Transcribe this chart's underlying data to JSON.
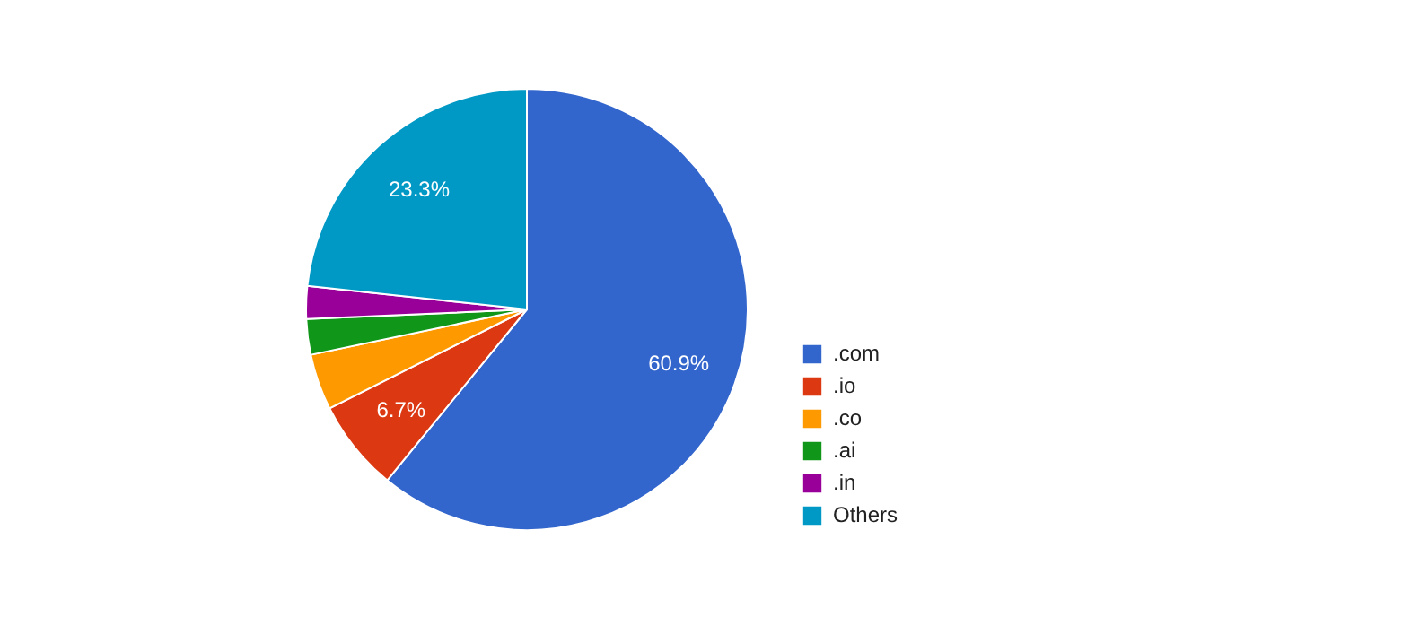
{
  "chart_data": {
    "type": "pie",
    "categories": [
      ".com",
      ".io",
      ".co",
      ".ai",
      ".in",
      "Others"
    ],
    "values": [
      60.9,
      6.7,
      4.1,
      2.6,
      2.4,
      23.3
    ],
    "colors": [
      "#3366cc",
      "#dc3912",
      "#ff9900",
      "#109618",
      "#990099",
      "#0099c6"
    ],
    "value_labels": [
      "60.9%",
      "6.7%",
      null,
      null,
      null,
      "23.3%"
    ],
    "legend": "right"
  }
}
